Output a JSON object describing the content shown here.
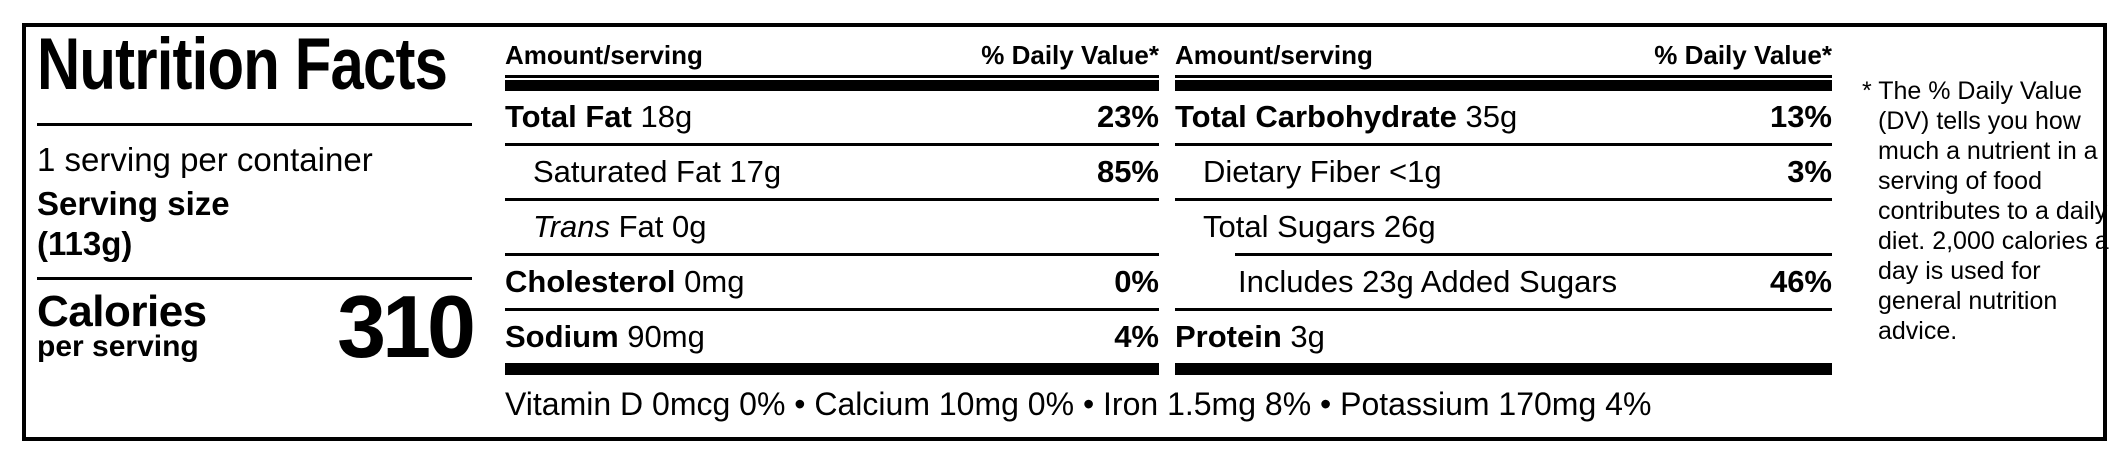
{
  "title": "Nutrition Facts",
  "serving": {
    "per_container": "1 serving per container",
    "size_label": "Serving size",
    "size_value": "(113g)"
  },
  "calories": {
    "label": "Calories",
    "sublabel": "per serving",
    "value": "310"
  },
  "columns": [
    {
      "header": {
        "amount": "Amount/serving",
        "dv": "% Daily Value*"
      },
      "rows": [
        {
          "slug": "total-fat",
          "parts": [
            {
              "text": "Total Fat",
              "style": "bold"
            },
            {
              "text": " 18g",
              "style": "normal"
            }
          ],
          "dv": "23%",
          "indent": 0
        },
        {
          "slug": "saturated-fat",
          "parts": [
            {
              "text": "Saturated Fat 17g",
              "style": "normal"
            }
          ],
          "dv": "85%",
          "indent": 1
        },
        {
          "slug": "trans-fat",
          "parts": [
            {
              "text": "Trans",
              "style": "italic"
            },
            {
              "text": " Fat 0g",
              "style": "normal"
            }
          ],
          "dv": "",
          "indent": 1
        },
        {
          "slug": "cholesterol",
          "parts": [
            {
              "text": "Cholesterol",
              "style": "bold"
            },
            {
              "text": " 0mg",
              "style": "normal"
            }
          ],
          "dv": "0%",
          "indent": 0
        },
        {
          "slug": "sodium",
          "parts": [
            {
              "text": "Sodium",
              "style": "bold"
            },
            {
              "text": " 90mg",
              "style": "normal"
            }
          ],
          "dv": "4%",
          "indent": 0
        }
      ]
    },
    {
      "header": {
        "amount": "Amount/serving",
        "dv": "% Daily Value*"
      },
      "rows": [
        {
          "slug": "total-carbohydrate",
          "parts": [
            {
              "text": "Total Carbohydrate",
              "style": "bold"
            },
            {
              "text": " 35g",
              "style": "normal"
            }
          ],
          "dv": "13%",
          "indent": 0
        },
        {
          "slug": "dietary-fiber",
          "parts": [
            {
              "text": "Dietary Fiber <1g",
              "style": "normal"
            }
          ],
          "dv": "3%",
          "indent": 1
        },
        {
          "slug": "total-sugars",
          "parts": [
            {
              "text": "Total Sugars 26g",
              "style": "normal"
            }
          ],
          "dv": "",
          "indent": 1
        },
        {
          "slug": "added-sugars",
          "parts": [
            {
              "text": "Includes 23g Added Sugars",
              "style": "normal"
            }
          ],
          "dv": "46%",
          "indent": 2,
          "divider_indent": true
        },
        {
          "slug": "protein",
          "parts": [
            {
              "text": "Protein",
              "style": "bold"
            },
            {
              "text": " 3g",
              "style": "normal"
            }
          ],
          "dv": "",
          "indent": 0
        }
      ]
    }
  ],
  "micronutrients": "Vitamin D 0mcg 0% • Calcium 10mg 0% • Iron 1.5mg 8% • Potassium 170mg 4%",
  "footnote": "* The % Daily Value (DV) tells you how much a nutrient in a serving of food contributes to a daily diet. 2,000 calories a day is used for general nutrition advice.",
  "colors": {
    "text": "#000000",
    "background": "#ffffff"
  }
}
